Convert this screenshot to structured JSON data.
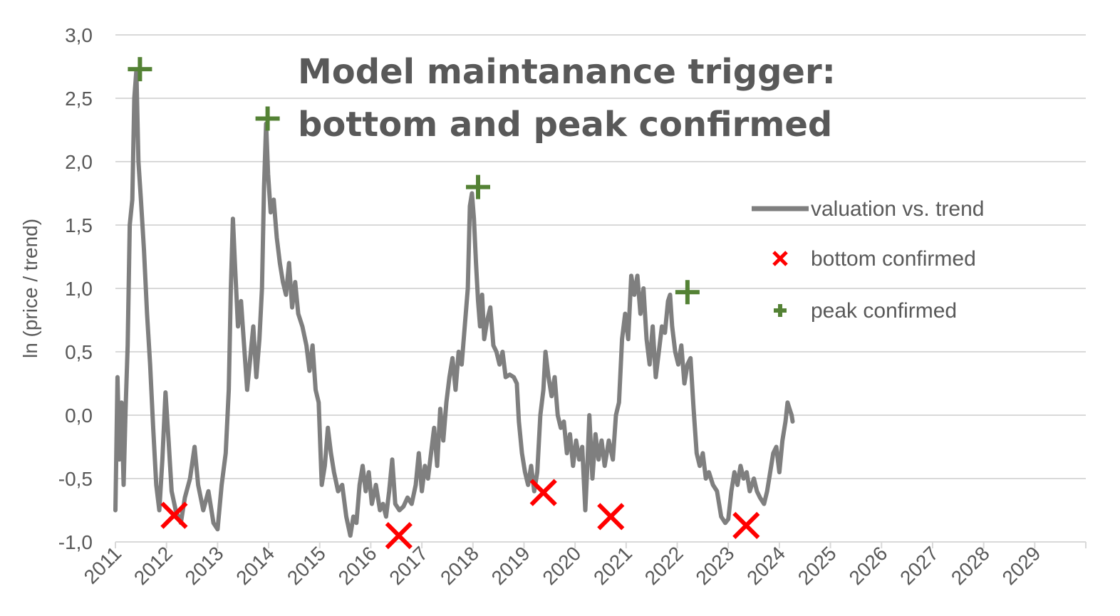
{
  "chart_data": {
    "type": "line",
    "title_lines": [
      "Model maintanance trigger:",
      "bottom and peak confirmed"
    ],
    "xlabel": "",
    "ylabel": "ln (price / trend)",
    "xlim": [
      2011,
      2030
    ],
    "ylim": [
      -1.0,
      3.0
    ],
    "y_ticks": [
      "-1,0",
      "-0,5",
      "0,0",
      "0,5",
      "1,0",
      "1,5",
      "2,0",
      "2,5",
      "3,0"
    ],
    "y_tick_values": [
      -1.0,
      -0.5,
      0.0,
      0.5,
      1.0,
      1.5,
      2.0,
      2.5,
      3.0
    ],
    "x_ticks": [
      "2011",
      "2012",
      "2013",
      "2014",
      "2015",
      "2016",
      "2017",
      "2018",
      "2019",
      "2020",
      "2021",
      "2022",
      "2023",
      "2024",
      "2025",
      "2026",
      "2027",
      "2028",
      "2029"
    ],
    "x_tick_values": [
      2011,
      2012,
      2013,
      2014,
      2015,
      2016,
      2017,
      2018,
      2019,
      2020,
      2021,
      2022,
      2023,
      2024,
      2025,
      2026,
      2027,
      2028,
      2029
    ],
    "grid": true,
    "legend_position": "right",
    "series": [
      {
        "name": "valuation vs. trend",
        "kind": "line",
        "color": "#7f7f7f",
        "points": [
          [
            2011.0,
            -0.75
          ],
          [
            2011.04,
            0.3
          ],
          [
            2011.08,
            -0.35
          ],
          [
            2011.12,
            0.1
          ],
          [
            2011.16,
            -0.55
          ],
          [
            2011.2,
            0.05
          ],
          [
            2011.24,
            0.55
          ],
          [
            2011.28,
            1.5
          ],
          [
            2011.33,
            1.7
          ],
          [
            2011.37,
            2.5
          ],
          [
            2011.41,
            2.72
          ],
          [
            2011.45,
            2.0
          ],
          [
            2011.5,
            1.7
          ],
          [
            2011.56,
            1.3
          ],
          [
            2011.62,
            0.8
          ],
          [
            2011.68,
            0.4
          ],
          [
            2011.74,
            -0.1
          ],
          [
            2011.8,
            -0.55
          ],
          [
            2011.86,
            -0.75
          ],
          [
            2011.92,
            -0.35
          ],
          [
            2011.98,
            0.18
          ],
          [
            2012.04,
            -0.2
          ],
          [
            2012.1,
            -0.6
          ],
          [
            2012.18,
            -0.75
          ],
          [
            2012.28,
            -0.85
          ],
          [
            2012.36,
            -0.65
          ],
          [
            2012.46,
            -0.5
          ],
          [
            2012.55,
            -0.25
          ],
          [
            2012.62,
            -0.55
          ],
          [
            2012.72,
            -0.75
          ],
          [
            2012.82,
            -0.6
          ],
          [
            2012.92,
            -0.85
          ],
          [
            2013.0,
            -0.9
          ],
          [
            2013.08,
            -0.55
          ],
          [
            2013.16,
            -0.3
          ],
          [
            2013.22,
            0.2
          ],
          [
            2013.26,
            1.0
          ],
          [
            2013.3,
            1.55
          ],
          [
            2013.34,
            1.2
          ],
          [
            2013.4,
            0.7
          ],
          [
            2013.46,
            0.9
          ],
          [
            2013.52,
            0.55
          ],
          [
            2013.58,
            0.2
          ],
          [
            2013.64,
            0.45
          ],
          [
            2013.7,
            0.7
          ],
          [
            2013.76,
            0.3
          ],
          [
            2013.82,
            0.6
          ],
          [
            2013.87,
            1.0
          ],
          [
            2013.91,
            1.8
          ],
          [
            2013.95,
            2.3
          ],
          [
            2013.99,
            1.9
          ],
          [
            2014.04,
            1.6
          ],
          [
            2014.1,
            1.7
          ],
          [
            2014.16,
            1.4
          ],
          [
            2014.22,
            1.2
          ],
          [
            2014.28,
            1.05
          ],
          [
            2014.34,
            0.95
          ],
          [
            2014.4,
            1.2
          ],
          [
            2014.46,
            0.85
          ],
          [
            2014.52,
            1.05
          ],
          [
            2014.58,
            0.8
          ],
          [
            2014.66,
            0.7
          ],
          [
            2014.74,
            0.55
          ],
          [
            2014.8,
            0.35
          ],
          [
            2014.86,
            0.55
          ],
          [
            2014.92,
            0.2
          ],
          [
            2014.98,
            0.1
          ],
          [
            2015.04,
            -0.55
          ],
          [
            2015.1,
            -0.4
          ],
          [
            2015.16,
            -0.1
          ],
          [
            2015.22,
            -0.3
          ],
          [
            2015.28,
            -0.45
          ],
          [
            2015.36,
            -0.6
          ],
          [
            2015.44,
            -0.55
          ],
          [
            2015.52,
            -0.8
          ],
          [
            2015.6,
            -0.95
          ],
          [
            2015.66,
            -0.8
          ],
          [
            2015.72,
            -0.85
          ],
          [
            2015.78,
            -0.55
          ],
          [
            2015.84,
            -0.4
          ],
          [
            2015.9,
            -0.6
          ],
          [
            2015.96,
            -0.45
          ],
          [
            2016.02,
            -0.7
          ],
          [
            2016.1,
            -0.55
          ],
          [
            2016.18,
            -0.75
          ],
          [
            2016.24,
            -0.7
          ],
          [
            2016.3,
            -0.8
          ],
          [
            2016.36,
            -0.6
          ],
          [
            2016.42,
            -0.35
          ],
          [
            2016.48,
            -0.7
          ],
          [
            2016.56,
            -0.75
          ],
          [
            2016.64,
            -0.72
          ],
          [
            2016.72,
            -0.65
          ],
          [
            2016.8,
            -0.7
          ],
          [
            2016.88,
            -0.55
          ],
          [
            2016.94,
            -0.3
          ],
          [
            2017.0,
            -0.6
          ],
          [
            2017.06,
            -0.4
          ],
          [
            2017.12,
            -0.5
          ],
          [
            2017.18,
            -0.3
          ],
          [
            2017.24,
            -0.1
          ],
          [
            2017.3,
            -0.4
          ],
          [
            2017.36,
            0.05
          ],
          [
            2017.42,
            -0.2
          ],
          [
            2017.48,
            0.1
          ],
          [
            2017.54,
            0.3
          ],
          [
            2017.6,
            0.45
          ],
          [
            2017.66,
            0.2
          ],
          [
            2017.72,
            0.5
          ],
          [
            2017.78,
            0.4
          ],
          [
            2017.84,
            0.7
          ],
          [
            2017.9,
            1.0
          ],
          [
            2017.94,
            1.65
          ],
          [
            2017.98,
            1.75
          ],
          [
            2018.02,
            1.55
          ],
          [
            2018.06,
            1.2
          ],
          [
            2018.1,
            0.9
          ],
          [
            2018.14,
            0.7
          ],
          [
            2018.18,
            0.95
          ],
          [
            2018.22,
            0.6
          ],
          [
            2018.28,
            0.75
          ],
          [
            2018.34,
            0.85
          ],
          [
            2018.4,
            0.55
          ],
          [
            2018.46,
            0.5
          ],
          [
            2018.52,
            0.4
          ],
          [
            2018.58,
            0.5
          ],
          [
            2018.64,
            0.3
          ],
          [
            2018.72,
            0.32
          ],
          [
            2018.8,
            0.3
          ],
          [
            2018.86,
            0.25
          ],
          [
            2018.9,
            -0.05
          ],
          [
            2018.96,
            -0.3
          ],
          [
            2019.02,
            -0.45
          ],
          [
            2019.08,
            -0.55
          ],
          [
            2019.14,
            -0.4
          ],
          [
            2019.2,
            -0.6
          ],
          [
            2019.26,
            -0.45
          ],
          [
            2019.32,
            0.0
          ],
          [
            2019.38,
            0.2
          ],
          [
            2019.42,
            0.5
          ],
          [
            2019.48,
            0.3
          ],
          [
            2019.54,
            0.15
          ],
          [
            2019.6,
            0.3
          ],
          [
            2019.66,
            0.0
          ],
          [
            2019.72,
            -0.1
          ],
          [
            2019.78,
            -0.05
          ],
          [
            2019.84,
            -0.3
          ],
          [
            2019.9,
            -0.15
          ],
          [
            2019.96,
            -0.4
          ],
          [
            2020.02,
            -0.2
          ],
          [
            2020.08,
            -0.35
          ],
          [
            2020.14,
            -0.25
          ],
          [
            2020.2,
            -0.75
          ],
          [
            2020.24,
            -0.4
          ],
          [
            2020.28,
            0.0
          ],
          [
            2020.34,
            -0.5
          ],
          [
            2020.4,
            -0.15
          ],
          [
            2020.46,
            -0.35
          ],
          [
            2020.52,
            -0.2
          ],
          [
            2020.58,
            -0.4
          ],
          [
            2020.66,
            -0.2
          ],
          [
            2020.74,
            -0.35
          ],
          [
            2020.8,
            0.0
          ],
          [
            2020.86,
            0.1
          ],
          [
            2020.92,
            0.6
          ],
          [
            2020.98,
            0.8
          ],
          [
            2021.04,
            0.6
          ],
          [
            2021.1,
            1.1
          ],
          [
            2021.16,
            0.95
          ],
          [
            2021.22,
            1.1
          ],
          [
            2021.28,
            0.8
          ],
          [
            2021.34,
            1.0
          ],
          [
            2021.4,
            0.6
          ],
          [
            2021.46,
            0.4
          ],
          [
            2021.52,
            0.7
          ],
          [
            2021.58,
            0.3
          ],
          [
            2021.64,
            0.5
          ],
          [
            2021.7,
            0.7
          ],
          [
            2021.76,
            0.65
          ],
          [
            2021.82,
            0.9
          ],
          [
            2021.86,
            0.95
          ],
          [
            2021.9,
            0.7
          ],
          [
            2021.96,
            0.5
          ],
          [
            2022.02,
            0.4
          ],
          [
            2022.08,
            0.55
          ],
          [
            2022.14,
            0.25
          ],
          [
            2022.2,
            0.4
          ],
          [
            2022.26,
            0.45
          ],
          [
            2022.32,
            0.05
          ],
          [
            2022.38,
            -0.3
          ],
          [
            2022.44,
            -0.4
          ],
          [
            2022.5,
            -0.3
          ],
          [
            2022.56,
            -0.5
          ],
          [
            2022.62,
            -0.45
          ],
          [
            2022.7,
            -0.55
          ],
          [
            2022.78,
            -0.6
          ],
          [
            2022.86,
            -0.8
          ],
          [
            2022.94,
            -0.85
          ],
          [
            2023.0,
            -0.82
          ],
          [
            2023.06,
            -0.6
          ],
          [
            2023.12,
            -0.45
          ],
          [
            2023.18,
            -0.55
          ],
          [
            2023.24,
            -0.4
          ],
          [
            2023.3,
            -0.5
          ],
          [
            2023.36,
            -0.45
          ],
          [
            2023.42,
            -0.6
          ],
          [
            2023.5,
            -0.5
          ],
          [
            2023.56,
            -0.6
          ],
          [
            2023.62,
            -0.65
          ],
          [
            2023.7,
            -0.7
          ],
          [
            2023.76,
            -0.6
          ],
          [
            2023.82,
            -0.45
          ],
          [
            2023.88,
            -0.3
          ],
          [
            2023.94,
            -0.25
          ],
          [
            2024.0,
            -0.45
          ],
          [
            2024.06,
            -0.2
          ],
          [
            2024.12,
            -0.05
          ],
          [
            2024.16,
            0.1
          ],
          [
            2024.2,
            0.05
          ],
          [
            2024.24,
            0.0
          ],
          [
            2024.26,
            -0.05
          ]
        ]
      },
      {
        "name": "bottom confirmed",
        "kind": "marker-x",
        "color": "#ff0000",
        "points": [
          [
            2012.15,
            -0.79
          ],
          [
            2016.55,
            -0.95
          ],
          [
            2019.38,
            -0.61
          ],
          [
            2020.7,
            -0.8
          ],
          [
            2023.35,
            -0.87
          ]
        ]
      },
      {
        "name": "peak confirmed",
        "kind": "marker-plus",
        "color": "#548235",
        "points": [
          [
            2011.48,
            2.73
          ],
          [
            2013.98,
            2.34
          ],
          [
            2018.1,
            1.8
          ],
          [
            2022.2,
            0.97
          ]
        ]
      }
    ]
  }
}
